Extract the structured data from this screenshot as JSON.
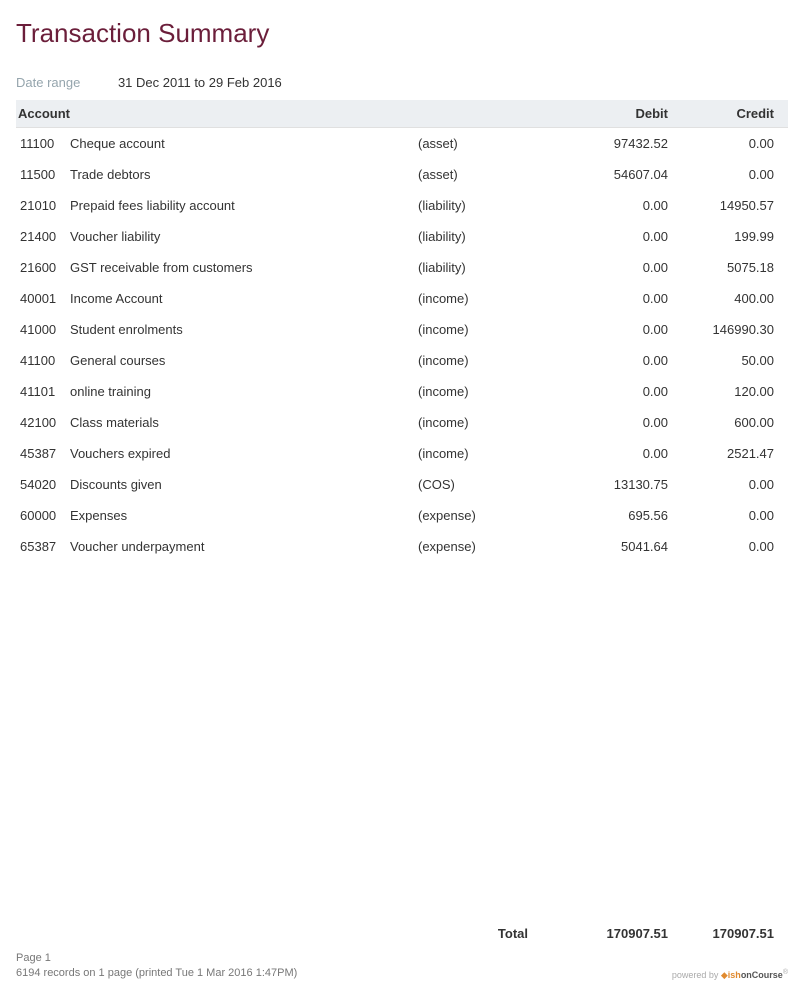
{
  "title": "Transaction Summary",
  "dateRange": {
    "label": "Date range",
    "value": "31 Dec 2011 to  29 Feb 2016"
  },
  "columns": {
    "account": "Account",
    "debit": "Debit",
    "credit": "Credit"
  },
  "rows": [
    {
      "code": "11100",
      "name": "Cheque account",
      "type": "(asset)",
      "debit": "97432.52",
      "credit": "0.00"
    },
    {
      "code": "11500",
      "name": "Trade debtors",
      "type": "(asset)",
      "debit": "54607.04",
      "credit": "0.00"
    },
    {
      "code": "21010",
      "name": "Prepaid fees liability account",
      "type": "(liability)",
      "debit": "0.00",
      "credit": "14950.57"
    },
    {
      "code": "21400",
      "name": "Voucher liability",
      "type": "(liability)",
      "debit": "0.00",
      "credit": "199.99"
    },
    {
      "code": "21600",
      "name": "GST receivable from customers",
      "type": "(liability)",
      "debit": "0.00",
      "credit": "5075.18"
    },
    {
      "code": "40001",
      "name": "Income Account",
      "type": "(income)",
      "debit": "0.00",
      "credit": "400.00"
    },
    {
      "code": "41000",
      "name": "Student enrolments",
      "type": "(income)",
      "debit": "0.00",
      "credit": "146990.30"
    },
    {
      "code": "41100",
      "name": "General courses",
      "type": "(income)",
      "debit": "0.00",
      "credit": "50.00"
    },
    {
      "code": "41101",
      "name": "online training",
      "type": "(income)",
      "debit": "0.00",
      "credit": "120.00"
    },
    {
      "code": "42100",
      "name": "Class materials",
      "type": "(income)",
      "debit": "0.00",
      "credit": "600.00"
    },
    {
      "code": "45387",
      "name": "Vouchers expired",
      "type": "(income)",
      "debit": "0.00",
      "credit": "2521.47"
    },
    {
      "code": "54020",
      "name": "Discounts given",
      "type": "(COS)",
      "debit": "13130.75",
      "credit": "0.00"
    },
    {
      "code": "60000",
      "name": "Expenses",
      "type": "(expense)",
      "debit": "695.56",
      "credit": "0.00"
    },
    {
      "code": "65387",
      "name": "Voucher underpayment",
      "type": "(expense)",
      "debit": "5041.64",
      "credit": "0.00"
    }
  ],
  "total": {
    "label": "Total",
    "debit": "170907.51",
    "credit": "170907.51"
  },
  "footer": {
    "page": "Page 1",
    "records": "6194 records on 1 page (printed Tue 1 Mar 2016 1:47PM)",
    "poweredBy": "powered by",
    "brand1": "ish",
    "brand2": "onCourse"
  },
  "style": {
    "title_color": "#6b1e3a",
    "header_bg": "#eceff2",
    "text_color": "#333333",
    "muted_color": "#95a5ad",
    "footer_color": "#777777"
  }
}
